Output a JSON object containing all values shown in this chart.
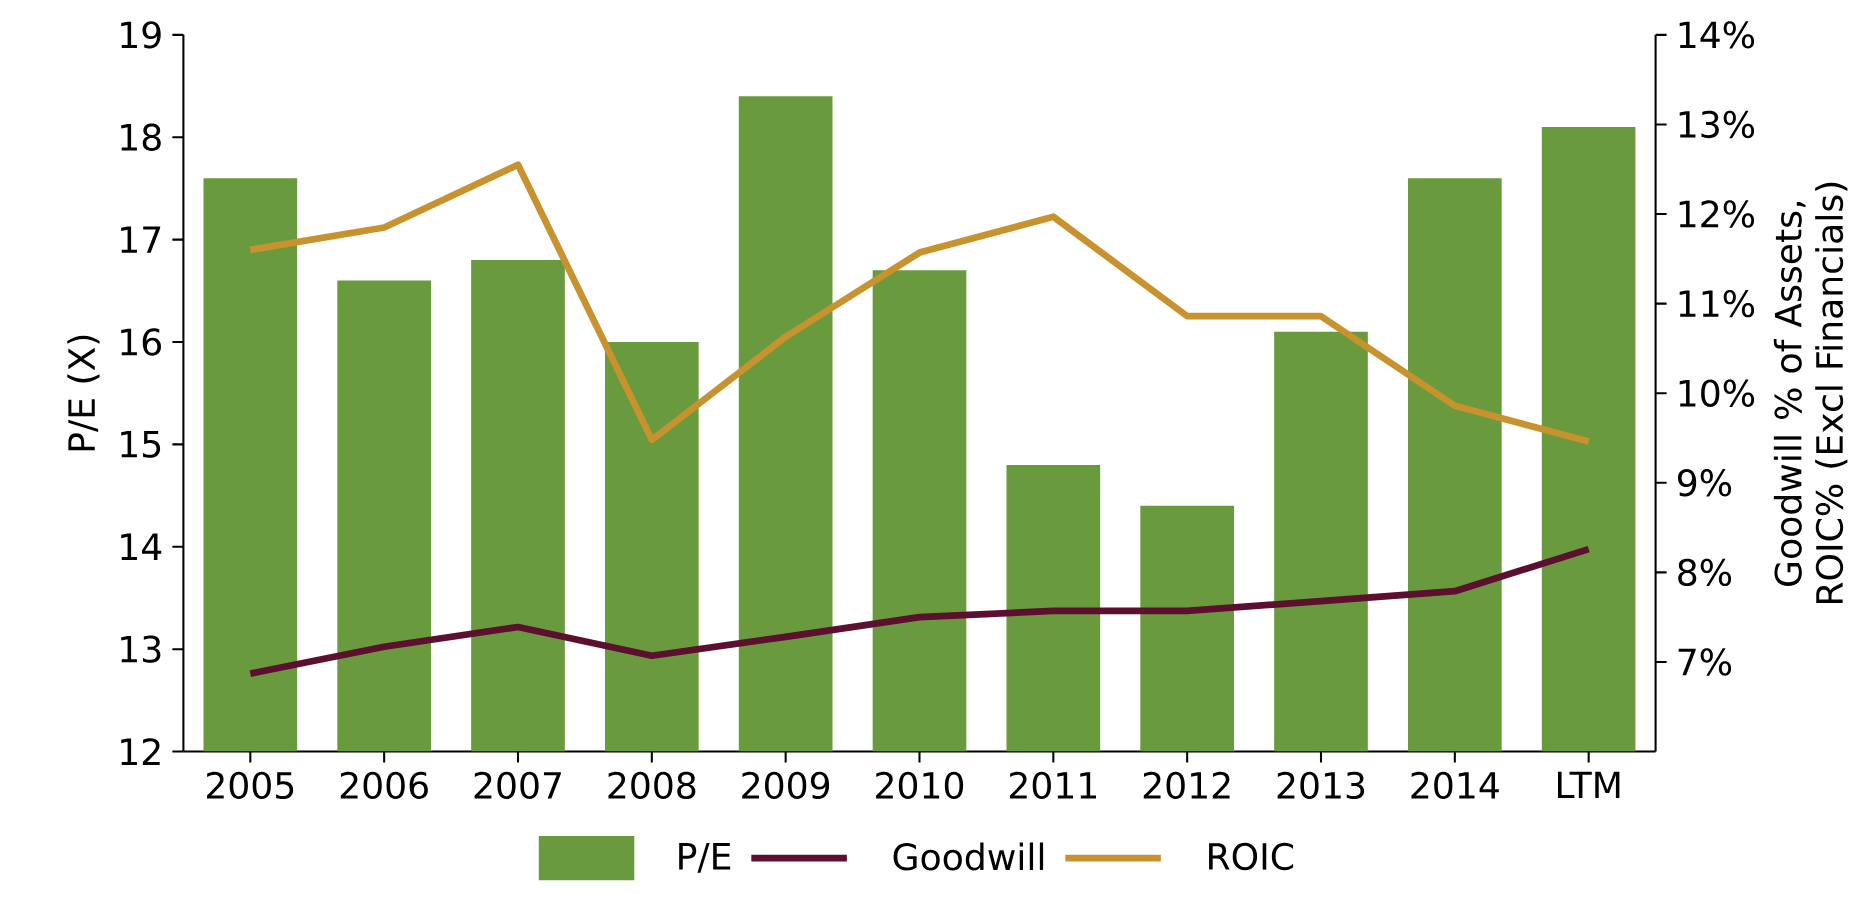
{
  "chart_data": {
    "type": "bar",
    "categories": [
      "2005",
      "2006",
      "2007",
      "2008",
      "2009",
      "2010",
      "2011",
      "2012",
      "2013",
      "2014",
      "LTM"
    ],
    "ylabel": "P/E (X)",
    "y2label": "Goodwill % of Assets, ROIC% (Excl Financials)",
    "ylim": [
      12,
      19
    ],
    "yticks": [
      12,
      13,
      14,
      15,
      16,
      17,
      18,
      19
    ],
    "y2lim": [
      6,
      14
    ],
    "y2ticks": [
      {
        "value": 7,
        "label": "7%"
      },
      {
        "value": 8,
        "label": "8%"
      },
      {
        "value": 9,
        "label": "9%"
      },
      {
        "value": 10,
        "label": "10%"
      },
      {
        "value": 11,
        "label": "11%"
      },
      {
        "value": 12,
        "label": "12%"
      },
      {
        "value": 13,
        "label": "13%"
      },
      {
        "value": 14,
        "label": "14%"
      }
    ],
    "series": [
      {
        "name": "P/E",
        "color": "#6a9a3e",
        "values": [
          17.6,
          16.6,
          16.8,
          16.0,
          18.4,
          16.7,
          14.8,
          14.4,
          16.1,
          17.6,
          18.1
        ]
      },
      {
        "name": "Goodwill",
        "type": "line",
        "axis": "y2",
        "color": "#5c0f2e",
        "values": [
          6.87,
          7.17,
          7.39,
          7.07,
          7.28,
          7.5,
          7.57,
          7.57,
          7.68,
          7.79,
          8.26
        ]
      },
      {
        "name": "ROIC",
        "type": "line",
        "axis": "y2",
        "color": "#c8922e",
        "values": [
          11.6,
          11.85,
          12.55,
          9.48,
          10.63,
          11.57,
          11.97,
          10.86,
          10.86,
          9.86,
          9.46
        ]
      }
    ],
    "legend": "bottom",
    "grid": false,
    "marker": "none"
  }
}
